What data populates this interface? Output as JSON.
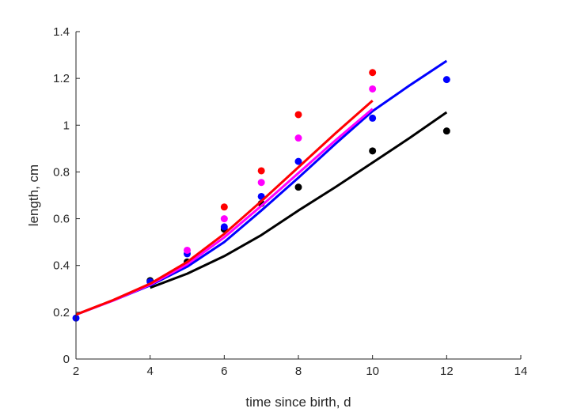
{
  "chart_data": {
    "type": "line",
    "title": "",
    "xlabel": "time since birth, d",
    "ylabel": "length, cm",
    "xlim": [
      2,
      14
    ],
    "ylim": [
      0,
      1.4
    ],
    "xticks": [
      "2",
      "4",
      "6",
      "8",
      "10",
      "12",
      "14"
    ],
    "yticks": [
      "0",
      "0.2",
      "0.4",
      "0.6",
      "0.8",
      "1",
      "1.2",
      "1.4"
    ],
    "grid": false,
    "legend": "none",
    "series": [
      {
        "color": "#000000",
        "line": {
          "x": [
            4,
            5,
            6,
            7,
            8,
            9,
            10,
            11,
            12
          ],
          "y": [
            0.305,
            0.365,
            0.44,
            0.53,
            0.635,
            0.735,
            0.84,
            0.945,
            1.055
          ]
        },
        "points": {
          "x": [
            4,
            5,
            6,
            7,
            8,
            10,
            12
          ],
          "y": [
            0.335,
            0.415,
            0.555,
            0.665,
            0.735,
            0.89,
            0.975
          ]
        }
      },
      {
        "color": "#0000ff",
        "line": {
          "x": [
            2,
            3,
            4,
            5,
            6,
            7,
            8,
            9,
            10,
            11,
            12
          ],
          "y": [
            0.19,
            0.25,
            0.315,
            0.395,
            0.5,
            0.635,
            0.775,
            0.92,
            1.06,
            1.17,
            1.275
          ]
        },
        "points": {
          "x": [
            2,
            4,
            5,
            6,
            7,
            8,
            10,
            12
          ],
          "y": [
            0.175,
            0.33,
            0.45,
            0.565,
            0.695,
            0.845,
            1.03,
            1.195
          ]
        }
      },
      {
        "color": "#ff00ff",
        "line": {
          "x": [
            2,
            3,
            4,
            5,
            6,
            7,
            8,
            9,
            10
          ],
          "y": [
            0.19,
            0.25,
            0.318,
            0.405,
            0.52,
            0.655,
            0.795,
            0.935,
            1.07
          ]
        },
        "points": {
          "x": [
            5,
            6,
            7,
            8,
            10
          ],
          "y": [
            0.465,
            0.6,
            0.755,
            0.945,
            1.155
          ]
        }
      },
      {
        "color": "#ff0000",
        "line": {
          "x": [
            2,
            3,
            4,
            5,
            6,
            7,
            8,
            9,
            10
          ],
          "y": [
            0.19,
            0.252,
            0.322,
            0.415,
            0.535,
            0.675,
            0.82,
            0.965,
            1.105
          ]
        },
        "points": {
          "x": [
            6,
            7,
            8,
            10
          ],
          "y": [
            0.65,
            0.805,
            1.045,
            1.225
          ]
        }
      }
    ]
  }
}
